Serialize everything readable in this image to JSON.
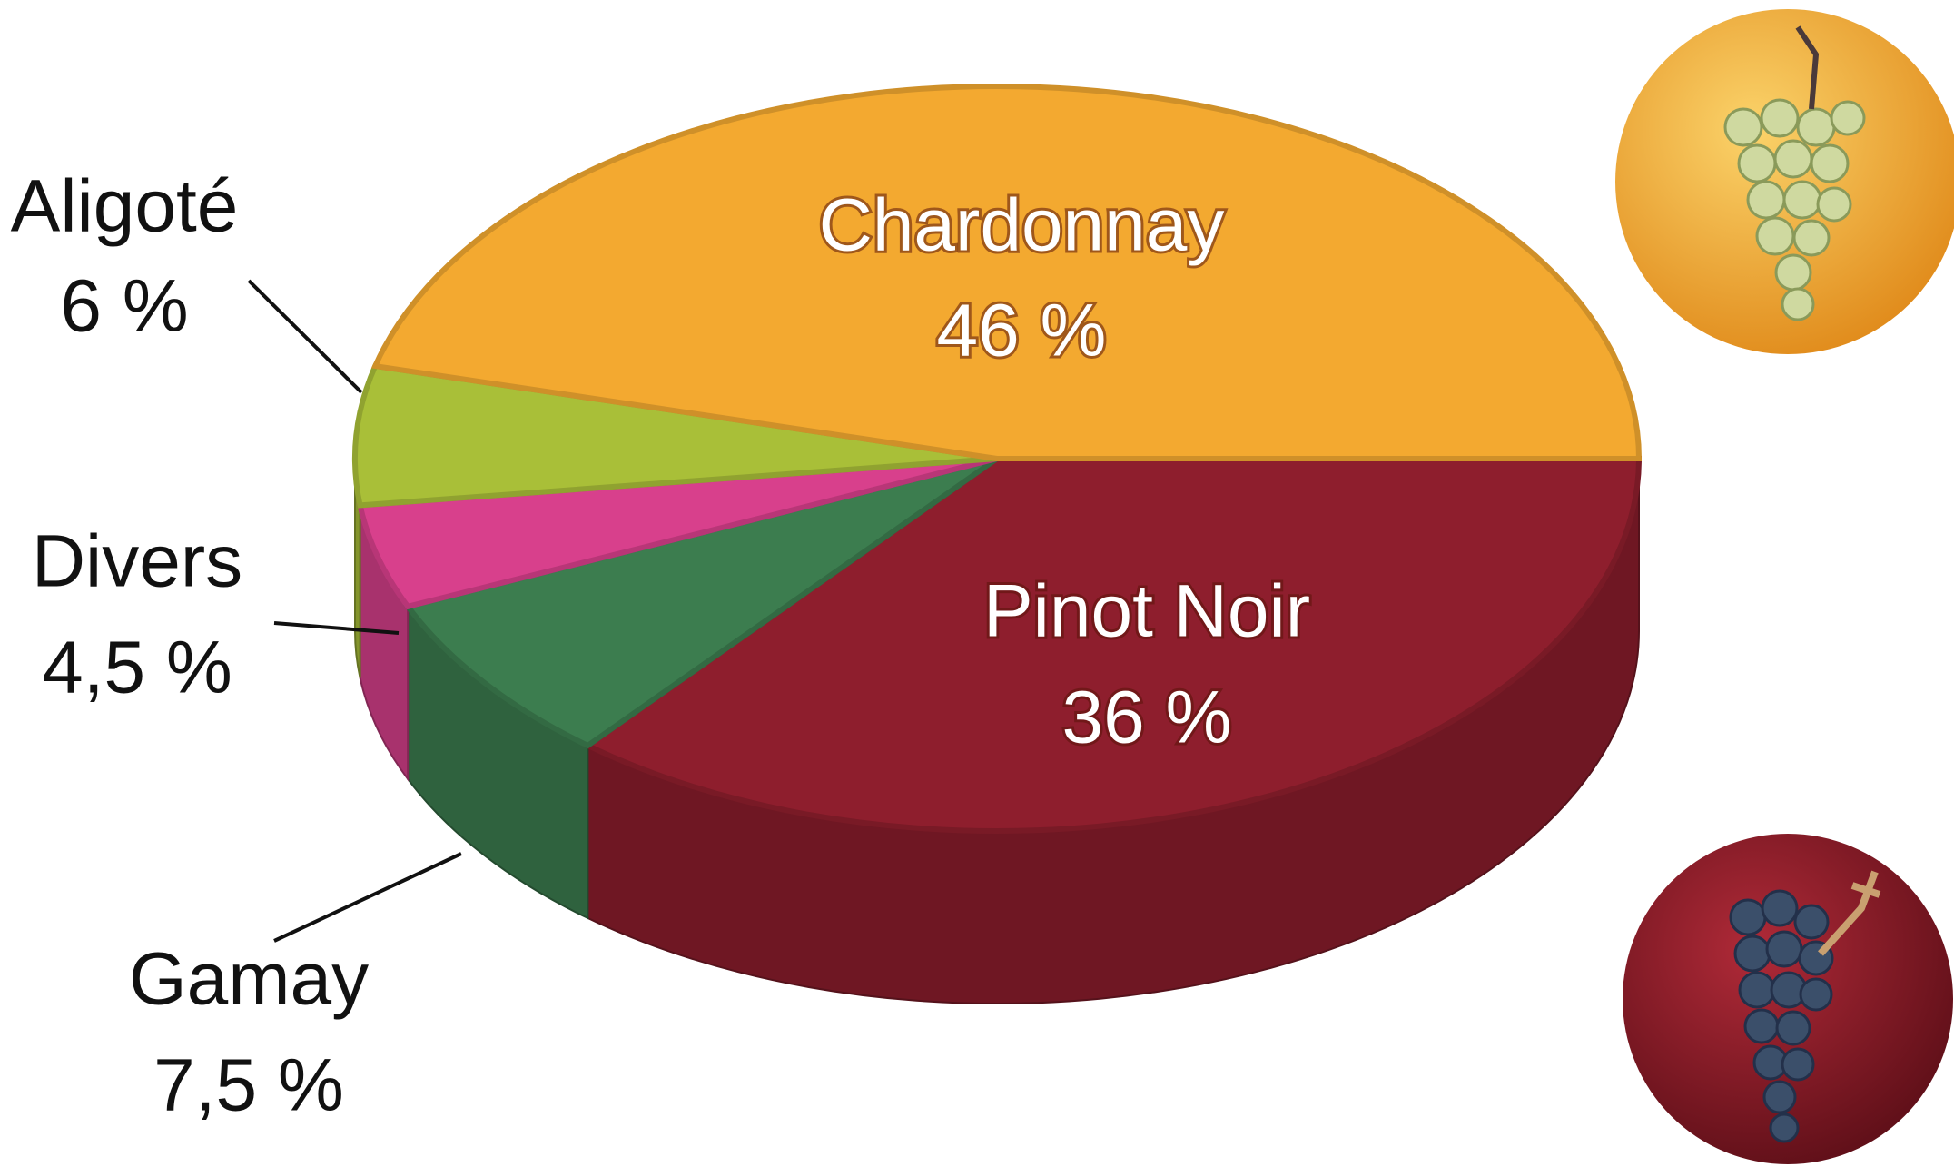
{
  "chart_data": {
    "type": "pie3d",
    "categories": [
      "Pinot Noir",
      "Gamay",
      "Divers",
      "Aligoté",
      "Chardonnay"
    ],
    "values": [
      36,
      7.5,
      4.5,
      6,
      46
    ],
    "value_labels": [
      "36 %",
      "7,5 %",
      "4,5 %",
      "6 %",
      "46 %"
    ],
    "colors": [
      "#8e1e2d",
      "#3c7d4f",
      "#d8408c",
      "#a9bf38",
      "#f3a930"
    ]
  }
}
